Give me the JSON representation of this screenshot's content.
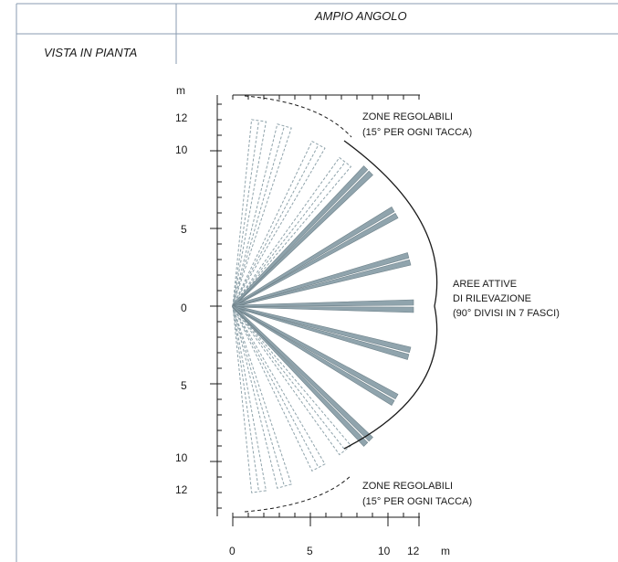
{
  "header": {
    "title": "AMPIO ANGOLO",
    "view_label": "VISTA IN PIANTA"
  },
  "diagram": {
    "y_axis_unit": "m",
    "x_axis_unit": "m",
    "y_tick_labels": [
      "12",
      "10",
      "5",
      "0",
      "5",
      "10",
      "12"
    ],
    "x_tick_labels": [
      "0",
      "5",
      "10",
      "12"
    ],
    "label_top_line1": "ZONE REGOLABILI",
    "label_top_line2": "(15° PER OGNI TACCA)",
    "label_bottom_line1": "ZONE REGOLABILI",
    "label_bottom_line2": "(15° PER OGNI TACCA)",
    "label_active_line1": "AREE ATTIVE",
    "label_active_line2": "DI RILEVAZIONE",
    "label_active_line3": "(90° DIVISI IN 7 FASCI)",
    "active_beam_angles_deg": [
      -45,
      -30,
      -15,
      0,
      15,
      30,
      45
    ],
    "adjustable_zone_angles_deg": [
      -82,
      -74,
      -62,
      -52,
      52,
      62,
      74,
      82
    ],
    "beam_color": "#90a4ad",
    "zone_line_color": "#8fa3ab"
  }
}
